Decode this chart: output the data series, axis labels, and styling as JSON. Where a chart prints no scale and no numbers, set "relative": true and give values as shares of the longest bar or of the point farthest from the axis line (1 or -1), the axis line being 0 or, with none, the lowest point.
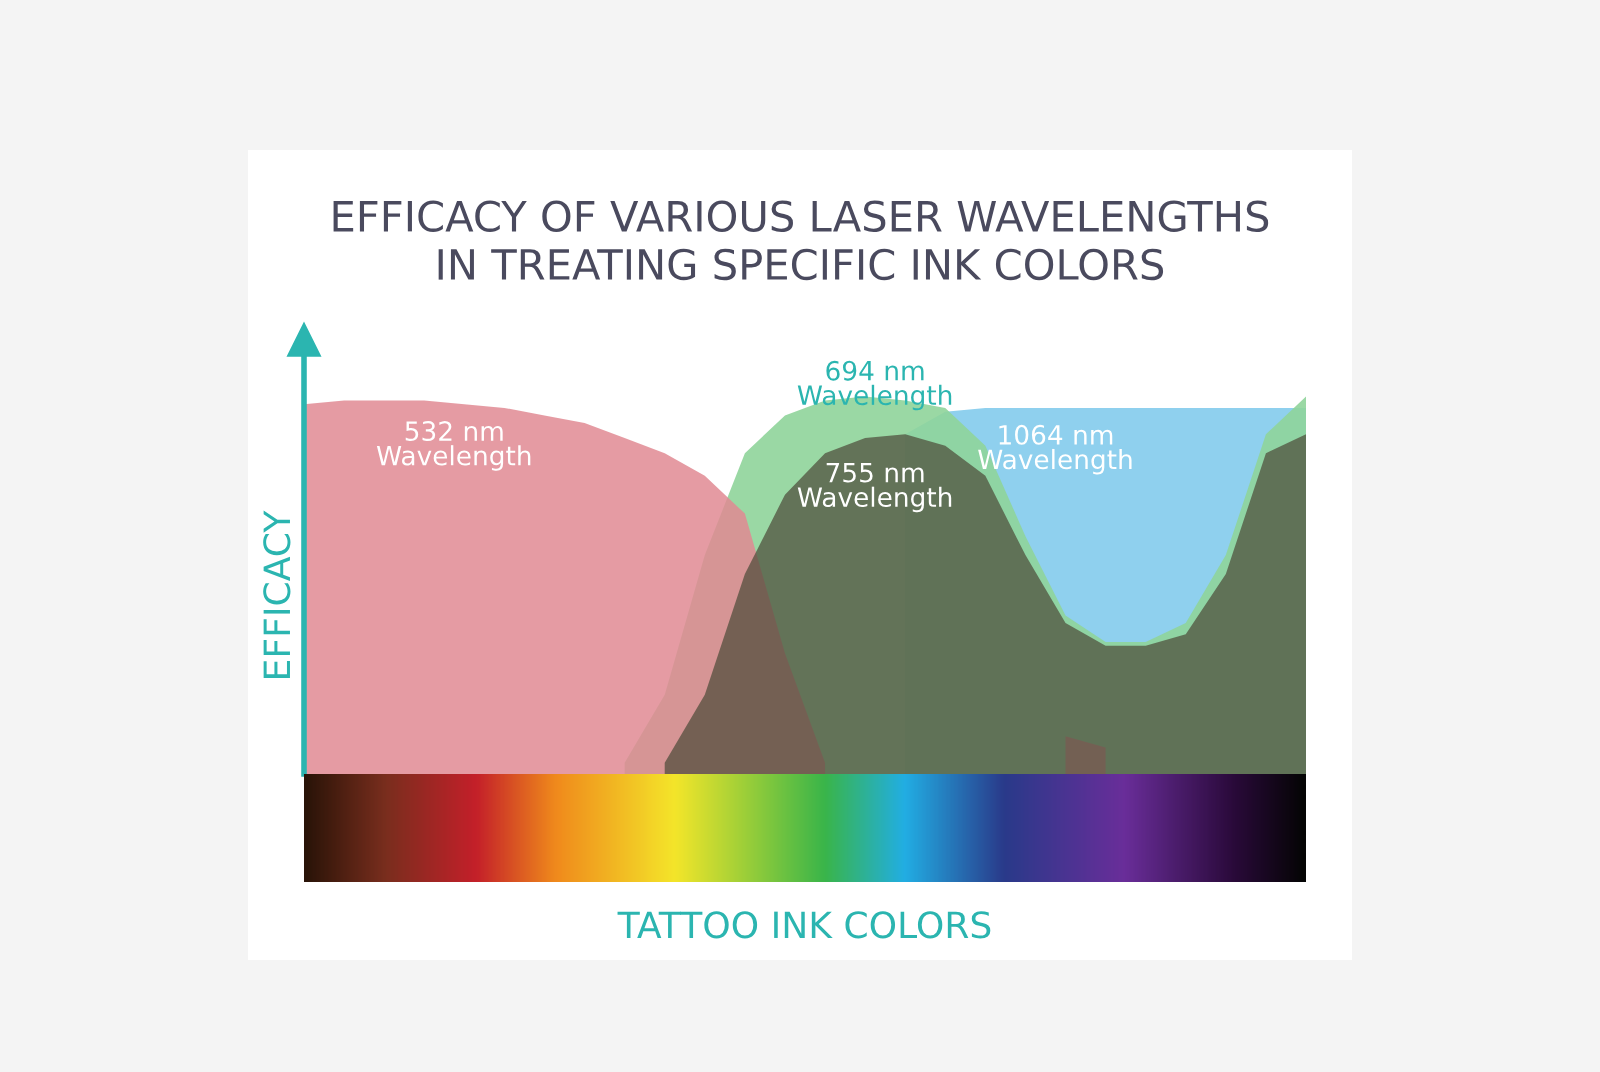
{
  "chart_data": {
    "type": "area",
    "relative": true,
    "title": "EFFICACY OF VARIOUS LASER WAVELENGTHS\nIN TREATING SPECIFIC INK COLORS",
    "xlabel": "TATTOO INK COLORS",
    "ylabel": "EFFICACY",
    "categories": [
      null,
      null,
      null,
      null,
      null,
      null,
      null,
      null,
      null,
      null,
      null,
      null,
      null,
      null,
      null,
      null,
      null,
      null,
      null,
      null,
      null,
      null,
      null,
      null,
      null,
      null
    ],
    "series": [
      {
        "name": "532 nm\nWavelength",
        "color": "#e08a93",
        "values": [
          0.98,
          0.99,
          0.99,
          0.99,
          0.98,
          0.97,
          0.95,
          0.93,
          0.89,
          0.85,
          0.79,
          0.69,
          0.32,
          0.03,
          null,
          null,
          null,
          null,
          null,
          0.1,
          0.07,
          null,
          null,
          null,
          null,
          null
        ]
      },
      {
        "name": "1064 nm\nWavelength",
        "color": "#8fd0ee",
        "values": [
          null,
          null,
          null,
          null,
          null,
          null,
          null,
          null,
          null,
          null,
          null,
          null,
          null,
          null,
          null,
          0.9,
          0.96,
          0.97,
          0.97,
          0.97,
          0.97,
          0.97,
          0.97,
          0.97,
          0.97,
          0.97
        ]
      },
      {
        "name": "694 nm\nWavelength",
        "color": "#8fd49a",
        "values": [
          null,
          null,
          null,
          null,
          null,
          null,
          null,
          null,
          0.03,
          0.21,
          0.58,
          0.85,
          0.95,
          0.99,
          1,
          0.99,
          0.97,
          0.87,
          0.63,
          0.42,
          0.35,
          0.35,
          0.4,
          0.58,
          0.9,
          1
        ]
      },
      {
        "name": "755 nm\nWavelength",
        "color": "#4e4c3a",
        "values": [
          null,
          null,
          null,
          null,
          null,
          null,
          null,
          null,
          null,
          0.03,
          0.21,
          0.53,
          0.74,
          0.85,
          0.89,
          0.9,
          0.87,
          0.79,
          0.58,
          0.4,
          0.34,
          0.34,
          0.37,
          0.53,
          0.85,
          0.9
        ]
      }
    ]
  }
}
